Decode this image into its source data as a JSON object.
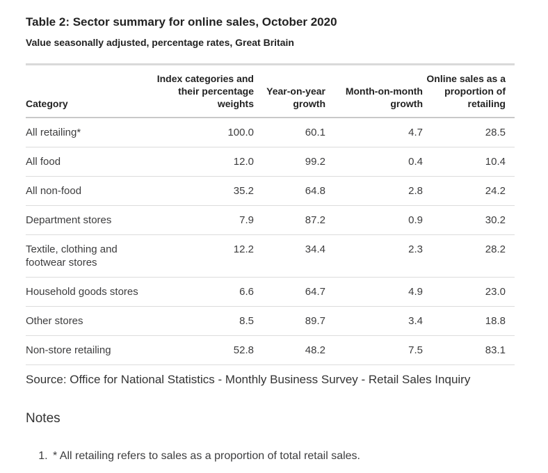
{
  "chart_data": {
    "type": "table",
    "title": "Table 2: Sector summary for online sales, October 2020",
    "subtitle": "Value seasonally adjusted, percentage rates, Great Britain",
    "columns": [
      "Category",
      "Index categories and their percentage weights",
      "Year-on-year growth",
      "Month-on-month growth",
      "Online sales as a proportion of retailing"
    ],
    "rows": [
      [
        "All retailing*",
        "100.0",
        "60.1",
        "4.7",
        "28.5"
      ],
      [
        "All food",
        "12.0",
        "99.2",
        "0.4",
        "10.4"
      ],
      [
        "All non-food",
        "35.2",
        "64.8",
        "2.8",
        "24.2"
      ],
      [
        "Department stores",
        "7.9",
        "87.2",
        "0.9",
        "30.2"
      ],
      [
        "Textile, clothing and footwear stores",
        "12.2",
        "34.4",
        "2.3",
        "28.2"
      ],
      [
        "Household goods stores",
        "6.6",
        "64.7",
        "4.9",
        "23.0"
      ],
      [
        "Other stores",
        "8.5",
        "89.7",
        "3.4",
        "18.8"
      ],
      [
        "Non-store retailing",
        "52.8",
        "48.2",
        "7.5",
        "83.1"
      ]
    ],
    "source": "Source: Office for National Statistics - Monthly Business Survey - Retail Sales Inquiry",
    "notes_heading": "Notes",
    "notes": [
      "* All retailing refers to sales as a proportion of total retail sales."
    ]
  },
  "colors": {
    "title_text": "#222222",
    "body_text": "#3c3c3d",
    "rule_heavy": "#c8c8c8",
    "rule_light": "#dcdcdc",
    "rule_top": "#d9d9d9"
  }
}
